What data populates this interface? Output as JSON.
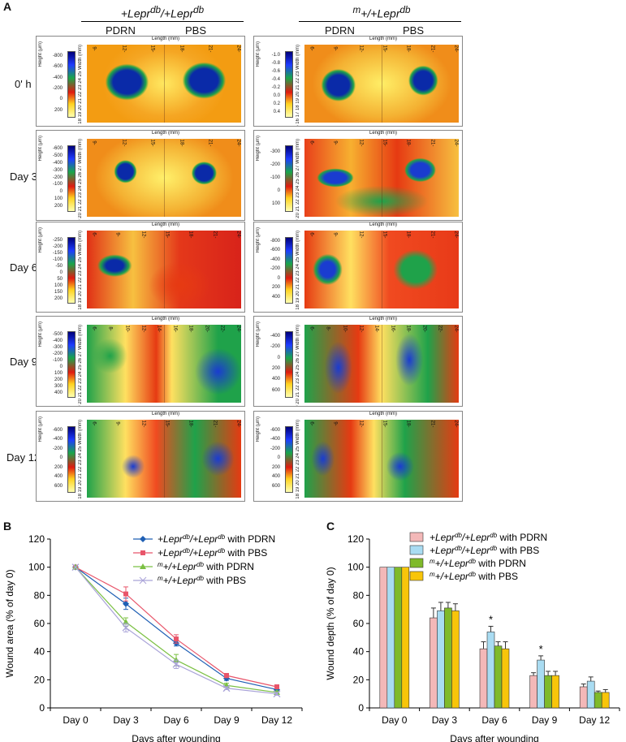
{
  "panel_labels": {
    "a": "A",
    "b": "B",
    "c": "C"
  },
  "panel_a": {
    "group_headers": [
      "+Lepr",
      "db",
      "/+Lepr",
      "db",
      "m",
      "+/+Lepr",
      "db"
    ],
    "columns": [
      "PDRN",
      "PBS",
      "PDRN",
      "PBS"
    ],
    "rows": [
      "0' h",
      "Day 3",
      "Day 6",
      "Day 9",
      "Day 12"
    ],
    "axis": {
      "length": "Length (mm)",
      "height": "Height (μm)",
      "width": "Width (mm)"
    },
    "panels": [
      {
        "len": [
          "9-",
          "12-",
          "15-",
          "18-",
          "21-",
          "24-"
        ],
        "scale": [
          "-800",
          "-600",
          "-400",
          "-200",
          "0",
          "200"
        ],
        "width": "17 18 19 20 21 22 23 24 25"
      },
      {
        "len": [
          "6-",
          "9-",
          "12-",
          "15-",
          "18-",
          "21-",
          "24-"
        ],
        "scale": [
          "-1.0",
          "-0.8",
          "-0.6",
          "-0.4",
          "-0.2",
          "0.0",
          "0.2",
          "0.4"
        ],
        "width": "15 16 17 18 19 20 21 22 23"
      },
      {
        "len": [
          "9-",
          "12-",
          "15-",
          "18-",
          "21-",
          "24-"
        ],
        "scale": [
          "-600",
          "-500",
          "-400",
          "-300",
          "-200",
          "-100",
          "0",
          "100",
          "200"
        ],
        "width": "18 19 20 21 22 23 24 25 26 27"
      },
      {
        "len": [
          "6-",
          "9-",
          "12-",
          "15-",
          "18-",
          "21-",
          "24-"
        ],
        "scale": [
          "-300",
          "-200",
          "-100",
          "0",
          "100"
        ],
        "width": "18 19 20 21 22 23 24 25 26 27"
      },
      {
        "len": [
          "6-",
          "9-",
          "12-",
          "15-",
          "18-",
          "21-",
          "24-"
        ],
        "scale": [
          "-250",
          "-200",
          "-150",
          "-100",
          "-50",
          "0",
          "50",
          "100",
          "150",
          "200"
        ],
        "width": "17 18 19 20 21 22 23 24 25"
      },
      {
        "len": [
          "6-",
          "9-",
          "12-",
          "15-",
          "18-",
          "21-",
          "24-"
        ],
        "scale": [
          "-800",
          "-600",
          "-400",
          "-200",
          "0",
          "200",
          "400"
        ],
        "width": "17 18 19 20 21 22 23 24 25"
      },
      {
        "len": [
          "6-",
          "8-",
          "10-",
          "12-",
          "14-",
          "16-",
          "18-",
          "20-",
          "22-",
          "24-"
        ],
        "scale": [
          "-500",
          "-400",
          "-300",
          "-200",
          "-100",
          "0",
          "100",
          "200",
          "300",
          "400"
        ],
        "width": "18 19 20 21 22 23 24 25 26 27"
      },
      {
        "len": [
          "6-",
          "8-",
          "10-",
          "12-",
          "14-",
          "16-",
          "18-",
          "20-",
          "22-",
          "24-"
        ],
        "scale": [
          "-400",
          "-200",
          "0",
          "200",
          "400",
          "600"
        ],
        "width": "18 19 20 21 22 23 24 25 26 27"
      },
      {
        "len": [
          "6-",
          "9-",
          "12-",
          "15-",
          "18-",
          "21-",
          "24-"
        ],
        "scale": [
          "-600",
          "-400",
          "-200",
          "0",
          "200",
          "400",
          "600"
        ],
        "width": "17 18 19 20 21 22 23 24 25"
      },
      {
        "len": [
          "6-",
          "9-",
          "12-",
          "15-",
          "18-",
          "21-",
          "24-"
        ],
        "scale": [
          "-600",
          "-400",
          "-200",
          "0",
          "200",
          "400",
          "600"
        ],
        "width": "17 18 19 20 21 22 23 24 25"
      }
    ]
  },
  "chart_data": [
    {
      "type": "line",
      "title": "",
      "xlabel": "Days after wounding",
      "ylabel": "Wound area (% of day 0)",
      "categories": [
        "Day 0",
        "Day 3",
        "Day 6",
        "Day 9",
        "Day 12"
      ],
      "ylim": [
        0,
        120
      ],
      "yticks": [
        "0",
        "20",
        "40",
        "60",
        "80",
        "100",
        "120"
      ],
      "legend_position": "top-right",
      "series": [
        {
          "name": "+Lepr^db/+Lepr^db with PDRN",
          "values": [
            100,
            74,
            46,
            21,
            13
          ],
          "errors": [
            0,
            4,
            2,
            1.5,
            1
          ],
          "color": "#1f5fb4",
          "marker": "diamond"
        },
        {
          "name": "+Lepr^db/+Lepr^db with PBS",
          "values": [
            100,
            81,
            49,
            23,
            15
          ],
          "errors": [
            0,
            5,
            3,
            1.5,
            1
          ],
          "color": "#e8556a",
          "marker": "square"
        },
        {
          "name": "m+/+Lepr^db with PDRN",
          "values": [
            100,
            61,
            34,
            16,
            11
          ],
          "errors": [
            0,
            3,
            4,
            1.5,
            1
          ],
          "color": "#7bc043",
          "marker": "triangle"
        },
        {
          "name": "m+/+Lepr^db with PBS",
          "values": [
            100,
            57,
            31,
            14,
            10
          ],
          "errors": [
            0,
            3,
            3,
            1,
            1
          ],
          "color": "#a9a3d8",
          "marker": "x"
        }
      ]
    },
    {
      "type": "bar",
      "title": "",
      "xlabel": "Days after wounding",
      "ylabel": "Wound depth (% of day 0)",
      "categories": [
        "Day 0",
        "Day 3",
        "Day 6",
        "Day 9",
        "Day 12"
      ],
      "ylim": [
        0,
        120
      ],
      "yticks": [
        "0",
        "20",
        "40",
        "60",
        "80",
        "100",
        "120"
      ],
      "legend_position": "top-right",
      "annotations": [
        {
          "category": "Day 6",
          "series": 1,
          "text": "*"
        },
        {
          "category": "Day 9",
          "series": 1,
          "text": "*"
        }
      ],
      "series": [
        {
          "name": "+Lepr^db/+Lepr^db with PDRN",
          "values": [
            100,
            64,
            42,
            23,
            15
          ],
          "errors": [
            0,
            7,
            5,
            2,
            2
          ],
          "color": "#f3b8b8"
        },
        {
          "name": "+Lepr^db/+Lepr^db with PBS",
          "values": [
            100,
            69,
            54,
            34,
            19
          ],
          "errors": [
            0,
            6,
            4,
            3,
            3
          ],
          "color": "#a9dcf2"
        },
        {
          "name": "m+/+Lepr^db with PDRN",
          "values": [
            100,
            71,
            44,
            23,
            11
          ],
          "errors": [
            0,
            4,
            3,
            3,
            1
          ],
          "color": "#7fba2a"
        },
        {
          "name": "m+/+Lepr^db with PBS",
          "values": [
            100,
            69,
            42,
            23,
            11
          ],
          "errors": [
            0,
            5,
            5,
            3,
            2
          ],
          "color": "#f8c50a"
        }
      ]
    }
  ],
  "legend_text": [
    {
      "a": "+Lepr",
      "b": "db",
      "c": "/+Lepr",
      "d": "db",
      "e": " with PDRN"
    },
    {
      "a": "+Lepr",
      "b": "db",
      "c": "/+Lepr",
      "d": "db",
      "e": " with PBS"
    },
    {
      "a": "",
      "b": "m",
      "c": "+/+Lepr",
      "d": "db",
      "e": " with PDRN"
    },
    {
      "a": "",
      "b": "m",
      "c": "+/+Lepr",
      "d": "db",
      "e": " with PBS"
    }
  ]
}
